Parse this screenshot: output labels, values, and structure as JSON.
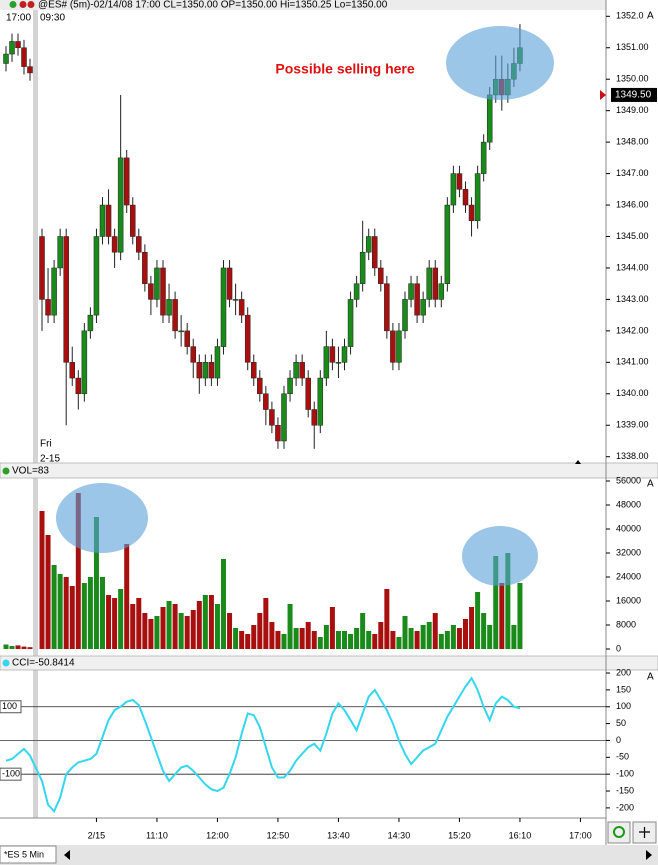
{
  "chart_data": [
    {
      "type": "candlestick",
      "title": "@ES# (5m)-02/14/08 17:00 CL=1350.00 OP=1350.00 Hi=1350.25 Lo=1350.00",
      "session_times": [
        "17:00",
        "09:30"
      ],
      "session_day": [
        "Fri",
        "2-15"
      ],
      "annotation": "Possible selling here",
      "last_price": 1349.5,
      "last_price_label": "1349.50",
      "autoscale": "A",
      "up_color": "#1a8a1a",
      "down_color": "#a81010",
      "open": [
        1350.5,
        1350.8,
        1351.2,
        1351,
        1350.4,
        1345,
        1343,
        1342.5,
        1344,
        1345,
        1341,
        1340.5,
        1340,
        1342,
        1342.5,
        1345,
        1346,
        1345,
        1344.5,
        1347.5,
        1346,
        1345,
        1344.5,
        1343.5,
        1343,
        1344,
        1342.5,
        1343,
        1342,
        1342,
        1341.5,
        1341,
        1340.5,
        1341,
        1340.5,
        1341.5,
        1344,
        1343,
        1343,
        1342.5,
        1341,
        1340.5,
        1340,
        1339.5,
        1339,
        1338.5,
        1340,
        1340.5,
        1341,
        1340.5,
        1339.5,
        1339,
        1340.5,
        1341.5,
        1341,
        1341,
        1341.5,
        1343,
        1343.5,
        1344.5,
        1345,
        1344,
        1343.5,
        1342,
        1341,
        1342,
        1343,
        1343.5,
        1342.5,
        1343,
        1344,
        1343,
        1343.5,
        1346,
        1347,
        1346.5,
        1346,
        1345.5,
        1347,
        1348,
        1349.5,
        1350,
        1349.5,
        1350,
        1350.5
      ],
      "high": [
        1351.05,
        1351.45,
        1351.45,
        1351.25,
        1350.65,
        1345.25,
        1344,
        1344.25,
        1345.25,
        1345.25,
        1341.5,
        1340.75,
        1342.25,
        1342.75,
        1345.25,
        1346.25,
        1346.5,
        1345.25,
        1349.5,
        1347.75,
        1346.25,
        1345.25,
        1344.75,
        1343.75,
        1344.25,
        1344.25,
        1343.5,
        1343.25,
        1342.5,
        1342.25,
        1341.75,
        1341.25,
        1341.25,
        1341.25,
        1341.75,
        1344.25,
        1344.25,
        1343.5,
        1343.25,
        1342.75,
        1341.25,
        1340.75,
        1340.25,
        1339.75,
        1339.25,
        1340.25,
        1340.75,
        1341.25,
        1341.25,
        1340.75,
        1339.75,
        1340.75,
        1342,
        1341.75,
        1341.5,
        1341.75,
        1343.25,
        1343.75,
        1345.5,
        1345.25,
        1345.25,
        1344.25,
        1343.75,
        1342.25,
        1342.25,
        1343.25,
        1343.75,
        1343.75,
        1343.25,
        1344.25,
        1344.25,
        1343.75,
        1346.25,
        1347.25,
        1347.25,
        1346.75,
        1346.25,
        1347.25,
        1348.25,
        1349.75,
        1350.75,
        1350.75,
        1350.5,
        1351,
        1351.75
      ],
      "low": [
        1350.25,
        1350.55,
        1350.75,
        1350.15,
        1349.95,
        1342,
        1342.25,
        1342.25,
        1343.75,
        1339,
        1340.25,
        1339.5,
        1339.75,
        1341.75,
        1342.25,
        1344.75,
        1344.75,
        1344,
        1344.25,
        1345.75,
        1344.75,
        1344.25,
        1343.25,
        1342.5,
        1342.75,
        1342.25,
        1342.25,
        1341.75,
        1341.5,
        1341.25,
        1340.5,
        1340,
        1340.25,
        1340.25,
        1340.25,
        1341.25,
        1342.75,
        1342.5,
        1342.25,
        1340.75,
        1340.25,
        1339.75,
        1339,
        1338.75,
        1338.25,
        1338.25,
        1339.75,
        1340.25,
        1340.25,
        1339.25,
        1338.25,
        1338.75,
        1340.25,
        1340.75,
        1340.5,
        1340.75,
        1341.25,
        1342.75,
        1343.25,
        1344.25,
        1343.75,
        1343.25,
        1341.75,
        1340.75,
        1340.75,
        1341.75,
        1342.75,
        1342.25,
        1342.25,
        1342.75,
        1342.75,
        1342.75,
        1343.25,
        1345.75,
        1346.25,
        1345.75,
        1345,
        1345.25,
        1346.75,
        1347.75,
        1349.25,
        1349,
        1349.25,
        1349.75,
        1350.25
      ],
      "close": [
        1350.8,
        1351.2,
        1351,
        1350.4,
        1350.2,
        1343,
        1342.5,
        1344,
        1345,
        1341,
        1340.5,
        1340,
        1342,
        1342.5,
        1345,
        1346,
        1345,
        1344.5,
        1347.5,
        1346,
        1345,
        1344.5,
        1343.5,
        1343,
        1344,
        1342.5,
        1343,
        1342,
        1342,
        1341.5,
        1341,
        1340.5,
        1341,
        1340.5,
        1341.5,
        1344,
        1343,
        1343,
        1342.5,
        1341,
        1340.5,
        1340,
        1339.5,
        1339,
        1338.5,
        1340,
        1340.5,
        1341,
        1340.5,
        1339.5,
        1339,
        1340.5,
        1341.5,
        1341,
        1341,
        1341.5,
        1343,
        1343.5,
        1344.5,
        1345,
        1344,
        1343.5,
        1342,
        1341,
        1342,
        1343,
        1343.5,
        1342.5,
        1343,
        1344,
        1343,
        1343.5,
        1346,
        1347,
        1346.5,
        1346,
        1345.5,
        1347,
        1348,
        1349.5,
        1350,
        1349.5,
        1350,
        1350.5,
        1351
      ],
      "ylim": [
        1337.8,
        1352.2
      ],
      "yticks": [
        {
          "value": 1338,
          "label": "1338.00"
        },
        {
          "value": 1339,
          "label": "1339.00"
        },
        {
          "value": 1340,
          "label": "1340.00"
        },
        {
          "value": 1341,
          "label": "1341.00"
        },
        {
          "value": 1342,
          "label": "1342.00"
        },
        {
          "value": 1343,
          "label": "1343.00"
        },
        {
          "value": 1344,
          "label": "1344.00"
        },
        {
          "value": 1345,
          "label": "1345.00"
        },
        {
          "value": 1346,
          "label": "1346.00"
        },
        {
          "value": 1347,
          "label": "1347.00"
        },
        {
          "value": 1348,
          "label": "1348.00"
        },
        {
          "value": 1349,
          "label": "1349.00"
        },
        {
          "value": 1350,
          "label": "1350.00"
        },
        {
          "value": 1351,
          "label": "1351.00"
        },
        {
          "value": 1352,
          "label": "1352.0"
        }
      ]
    },
    {
      "type": "bar",
      "title": "VOL=83",
      "autoscale": "A",
      "values": [
        1500,
        1000,
        1200,
        800,
        600,
        46000,
        38000,
        28000,
        25000,
        24000,
        21000,
        52000,
        22000,
        24000,
        44000,
        24000,
        18000,
        17000,
        20000,
        35000,
        15000,
        17000,
        12000,
        10000,
        11000,
        14000,
        16000,
        15000,
        12000,
        11000,
        13000,
        16000,
        18000,
        18000,
        15000,
        30000,
        12000,
        7000,
        6000,
        5000,
        8000,
        12000,
        17000,
        9000,
        6000,
        5000,
        15000,
        7000,
        7000,
        9000,
        6000,
        4000,
        8000,
        14000,
        6000,
        6000,
        5000,
        7000,
        12000,
        6000,
        5000,
        9000,
        20000,
        6000,
        4000,
        11000,
        7000,
        6000,
        8000,
        9000,
        12000,
        5000,
        6000,
        8000,
        7000,
        10000,
        14000,
        19000,
        12000,
        8000,
        31000,
        22000,
        32000,
        8000,
        22000
      ],
      "ylim": [
        -2000,
        57000
      ],
      "yticks": [
        0,
        8000,
        16000,
        24000,
        32000,
        40000,
        48000,
        56000
      ]
    },
    {
      "type": "line",
      "title": "CCI=-50.8414",
      "autoscale": "A",
      "color": "#35d6ee",
      "values": [
        -60,
        -55,
        -40,
        -25,
        -45,
        -120,
        -190,
        -210,
        -170,
        -100,
        -80,
        -65,
        -60,
        -55,
        -40,
        10,
        60,
        90,
        100,
        115,
        120,
        105,
        60,
        10,
        -40,
        -90,
        -120,
        -100,
        -80,
        -75,
        -90,
        -110,
        -130,
        -145,
        -150,
        -140,
        -100,
        -50,
        20,
        80,
        75,
        40,
        -20,
        -80,
        -110,
        -110,
        -90,
        -60,
        -40,
        -20,
        -10,
        -30,
        20,
        80,
        110,
        90,
        60,
        30,
        80,
        130,
        150,
        120,
        90,
        50,
        0,
        -40,
        -70,
        -50,
        -30,
        -20,
        -10,
        30,
        70,
        100,
        130,
        160,
        185,
        150,
        100,
        60,
        110,
        130,
        120,
        100,
        95
      ],
      "ylim": [
        -230,
        206
      ],
      "yticks": [
        -200,
        -150,
        -100,
        -50,
        0,
        50,
        100,
        150,
        200
      ],
      "hlines": [
        100,
        -100
      ],
      "zero_line": 0,
      "xticks": [
        {
          "value": 14,
          "label": "2/15"
        },
        {
          "value": 24,
          "label": "11:10"
        },
        {
          "value": 34,
          "label": "12:00"
        },
        {
          "value": 44,
          "label": "12:50"
        },
        {
          "value": 54,
          "label": "13:40"
        },
        {
          "value": 64,
          "label": "14:30"
        },
        {
          "value": 74,
          "label": "15:20"
        },
        {
          "value": 84,
          "label": "16:10"
        },
        {
          "value": 94,
          "label": "17:00"
        }
      ]
    }
  ],
  "footer": {
    "tab": "*ES 5 Min"
  }
}
